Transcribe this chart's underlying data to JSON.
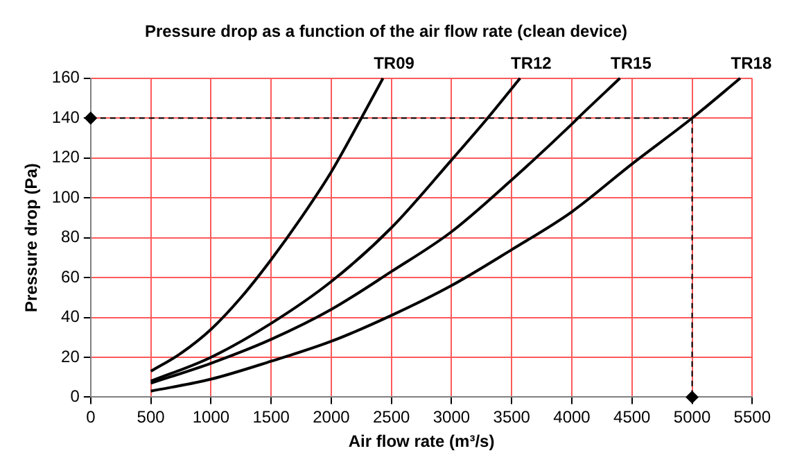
{
  "chart_data": {
    "type": "line",
    "title": "Pressure drop as a function of the air flow rate (clean device)",
    "xlabel": "Air flow rate (m³/s)",
    "ylabel": "Pressure drop (Pa)",
    "xlim": [
      0,
      5500
    ],
    "xticks": [
      0,
      500,
      1000,
      1500,
      2000,
      2500,
      3000,
      3500,
      4000,
      4500,
      5000,
      5500
    ],
    "ylim": [
      0,
      160
    ],
    "yticks": [
      0,
      20,
      40,
      60,
      80,
      100,
      120,
      140,
      160
    ],
    "grid": true,
    "legend": false,
    "marker": "none",
    "line_style": "solid",
    "series": [
      {
        "name": "TR09",
        "color": "#000000",
        "x": [
          500,
          750,
          1000,
          1250,
          1500,
          1750,
          2000,
          2250,
          2430
        ],
        "values": [
          13,
          22,
          34,
          50,
          69,
          90,
          113,
          140,
          160
        ]
      },
      {
        "name": "TR12",
        "color": "#000000",
        "x": [
          500,
          1000,
          1500,
          2000,
          2500,
          3000,
          3300,
          3570
        ],
        "values": [
          8,
          20,
          37,
          58,
          85,
          119,
          140,
          160
        ]
      },
      {
        "name": "TR15",
        "color": "#000000",
        "x": [
          500,
          1000,
          1500,
          2000,
          2500,
          3000,
          3500,
          4000,
          4050,
          4400
        ],
        "values": [
          7,
          17,
          29,
          44,
          63,
          83,
          109,
          137,
          140,
          160
        ]
      },
      {
        "name": "TR18",
        "color": "#000000",
        "x": [
          500,
          1000,
          1500,
          2000,
          2500,
          3000,
          3500,
          4000,
          4500,
          5000,
          5400
        ],
        "values": [
          3,
          9,
          18,
          28,
          41,
          56,
          74,
          93,
          117,
          140,
          160
        ]
      },
      {
        "type": "line",
        "color": "#000000",
        "line_style": "dashed",
        "marker": "diamond",
        "x": [
          0,
          5000,
          5000
        ],
        "values": [
          140,
          140,
          0
        ]
      }
    ]
  }
}
